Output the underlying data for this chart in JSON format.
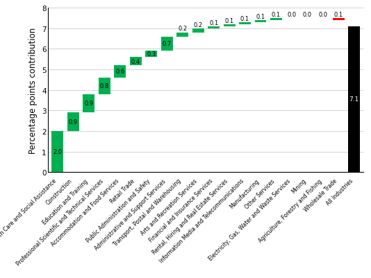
{
  "categories": [
    "Health Care and Social Assistance",
    "Construction",
    "Education and Training",
    "Professional Scientific and Technical Services",
    "Accommodation and Food Services",
    "Retail Trade",
    "Public Administration and Safety",
    "Administrative and Support Services",
    "Transport, Postal and Warehousing",
    "Arts and Recreation Services",
    "Financial and Insurance Services",
    "Rental, Hiring and Real Estate Services",
    "Information Media and Telecommunications",
    "Manufacturing",
    "Other Services",
    "Electricity, Gas, Water and Waste Services",
    "Mining",
    "Agriculture, Forestry and Fishing",
    "Wholesale Trade",
    "All Industries"
  ],
  "contributions": [
    2.0,
    0.9,
    0.9,
    0.8,
    0.6,
    0.4,
    0.3,
    0.7,
    0.2,
    0.2,
    0.1,
    0.1,
    0.1,
    0.1,
    0.1,
    0.0,
    0.0,
    0.0,
    -0.1,
    7.1
  ],
  "labels": [
    "2.0",
    "0.9",
    "0.9",
    "0.8",
    "0.6",
    "0.4",
    "0.3",
    "0.7",
    "0.2",
    "0.2",
    "0.1",
    "0.1",
    "0.1",
    "0.1",
    "0.1",
    "0.0",
    "0.0",
    "0.0",
    "0.1",
    "7.1"
  ],
  "bar_colors": [
    "#00b050",
    "#00b050",
    "#00b050",
    "#00b050",
    "#00b050",
    "#00b050",
    "#00b050",
    "#00b050",
    "#00b050",
    "#00b050",
    "#00b050",
    "#00b050",
    "#00b050",
    "#00b050",
    "#00b050",
    "#00b050",
    "#00b050",
    "#00b050",
    "#ff0000",
    "#000000"
  ],
  "ylabel": "Percentage points contribution",
  "ylim": [
    0,
    8
  ],
  "yticks": [
    0,
    1,
    2,
    3,
    4,
    5,
    6,
    7,
    8
  ],
  "yticklabels": [
    "0",
    "1",
    "2",
    "3",
    "4",
    "5",
    "6",
    "7",
    "8"
  ],
  "background_color": "#ffffff",
  "grid_color": "#c0c0c0",
  "label_fontsize": 6.0,
  "ylabel_fontsize": 8.5
}
